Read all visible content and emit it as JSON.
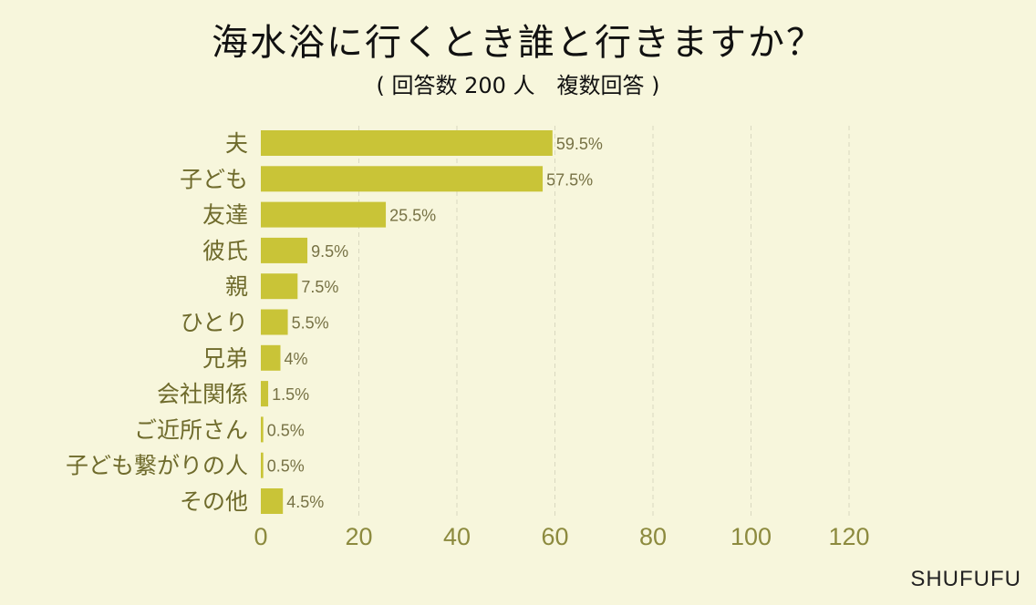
{
  "title": "海水浴に行くとき誰と行きますか？",
  "subtitle": "( 回答数 200 人　複数回答 )",
  "brand": "SHUFUFU",
  "colors": {
    "background": "#f7f6dc",
    "bar": "#c9c437",
    "category_text": "#6f6b2c",
    "tick_text": "#8c8a3e"
  },
  "chart_data": {
    "type": "bar",
    "orientation": "horizontal",
    "title": "海水浴に行くとき誰と行きますか？",
    "subtitle": "( 回答数 200 人　複数回答 )",
    "categories": [
      "夫",
      "子ども",
      "友達",
      "彼氏",
      "親",
      "ひとり",
      "兄弟",
      "会社関係",
      "ご近所さん",
      "子ども繋がりの人",
      "その他"
    ],
    "values": [
      59.5,
      57.5,
      25.5,
      9.5,
      7.5,
      5.5,
      4,
      1.5,
      0.5,
      0.5,
      4.5
    ],
    "value_labels": [
      "59.5%",
      "57.5%",
      "25.5%",
      "9.5%",
      "7.5%",
      "5.5%",
      "4%",
      "1.5%",
      "0.5%",
      "0.5%",
      "4.5%"
    ],
    "xlim": [
      0,
      120
    ],
    "xticks": [
      0,
      20,
      40,
      60,
      80,
      100,
      120
    ],
    "grid": true,
    "legend": "none"
  }
}
